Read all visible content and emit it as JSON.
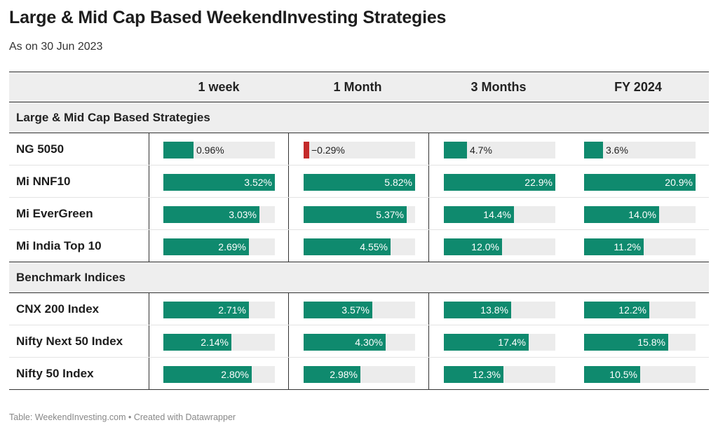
{
  "title": "Large & Mid Cap Based WeekendInvesting Strategies",
  "subtitle": "As on 30 Jun 2023",
  "columns": [
    "1 week",
    "1 Month",
    "3 Months",
    "FY 2024"
  ],
  "footer": "Table: WeekendInvesting.com • Created with Datawrapper",
  "colors": {
    "positive": "#0f8a6e",
    "negative": "#c42a2a",
    "track": "#ececec",
    "header_bg": "#eeeeee"
  },
  "chart_data": {
    "type": "table",
    "title": "Large & Mid Cap Based WeekendInvesting Strategies",
    "subtitle": "As on 30 Jun 2023",
    "columns": [
      "1 week",
      "1 Month",
      "3 Months",
      "FY 2024"
    ],
    "column_max": [
      3.52,
      5.82,
      22.9,
      20.9
    ],
    "groups": [
      {
        "name": "Large & Mid Cap Based Strategies",
        "rows": [
          {
            "name": "NG 5050",
            "values": [
              0.96,
              -0.29,
              4.7,
              3.6
            ],
            "labels": [
              "0.96%",
              "−0.29%",
              "4.7%",
              "3.6%"
            ]
          },
          {
            "name": "Mi NNF10",
            "values": [
              3.52,
              5.82,
              22.9,
              20.9
            ],
            "labels": [
              "3.52%",
              "5.82%",
              "22.9%",
              "20.9%"
            ]
          },
          {
            "name": "Mi EverGreen",
            "values": [
              3.03,
              5.37,
              14.4,
              14.0
            ],
            "labels": [
              "3.03%",
              "5.37%",
              "14.4%",
              "14.0%"
            ]
          },
          {
            "name": "Mi India Top 10",
            "values": [
              2.69,
              4.55,
              12.0,
              11.2
            ],
            "labels": [
              "2.69%",
              "4.55%",
              "12.0%",
              "11.2%"
            ]
          }
        ]
      },
      {
        "name": "Benchmark Indices",
        "rows": [
          {
            "name": "CNX 200 Index",
            "values": [
              2.71,
              3.57,
              13.8,
              12.2
            ],
            "labels": [
              "2.71%",
              "3.57%",
              "13.8%",
              "12.2%"
            ]
          },
          {
            "name": "Nifty Next 50 Index",
            "values": [
              2.14,
              4.3,
              17.4,
              15.8
            ],
            "labels": [
              "2.14%",
              "4.30%",
              "17.4%",
              "15.8%"
            ]
          },
          {
            "name": "Nifty 50 Index",
            "values": [
              2.8,
              2.98,
              12.3,
              10.5
            ],
            "labels": [
              "2.80%",
              "2.98%",
              "12.3%",
              "10.5%"
            ]
          }
        ]
      }
    ]
  }
}
